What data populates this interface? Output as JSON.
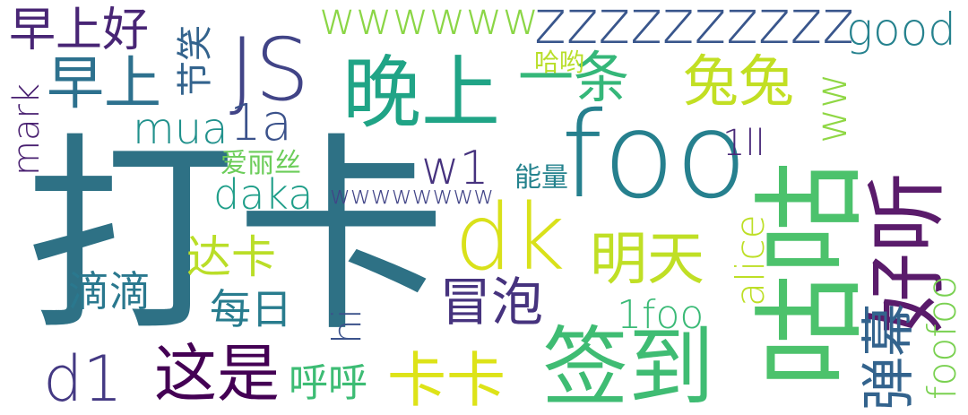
{
  "words": [
    {
      "text": "打卡",
      "color": "#2e7185"
    },
    {
      "text": "foo",
      "color": "#26808e"
    },
    {
      "text": "咕咕",
      "color": "#4cc26c"
    },
    {
      "text": "好听",
      "color": "#5a1b6b"
    },
    {
      "text": "签到",
      "color": "#3fbc73"
    },
    {
      "text": "dk",
      "color": "#d9e11a"
    },
    {
      "text": "JS",
      "color": "#414487"
    },
    {
      "text": "晚上",
      "color": "#20a486"
    },
    {
      "text": "zzzzzzzzzz",
      "color": "#39568c"
    },
    {
      "text": "这是",
      "color": "#440154"
    },
    {
      "text": "卡卡",
      "color": "#dde318"
    },
    {
      "text": "弹幕",
      "color": "#33638d"
    },
    {
      "text": "明天",
      "color": "#c0df25"
    },
    {
      "text": "兔兔",
      "color": "#c2df23"
    },
    {
      "text": "一条",
      "color": "#35b779"
    },
    {
      "text": "早上",
      "color": "#2d718e"
    },
    {
      "text": "早上好",
      "color": "#482575"
    },
    {
      "text": "d1",
      "color": "#443983"
    },
    {
      "text": "冒泡",
      "color": "#46337e"
    },
    {
      "text": "good",
      "color": "#26828e"
    },
    {
      "text": "wwwwww",
      "color": "#8bd646"
    },
    {
      "text": "1a",
      "color": "#3b528b"
    },
    {
      "text": "foofoo",
      "color": "#7ad151"
    },
    {
      "text": "alice",
      "color": "#bddf26"
    },
    {
      "text": "w1",
      "color": "#46327e"
    },
    {
      "text": "ww",
      "color": "#8fd744"
    },
    {
      "text": "mua",
      "color": "#21918c"
    },
    {
      "text": "每日",
      "color": "#287c8e"
    },
    {
      "text": "滴滴",
      "color": "#2a788e"
    },
    {
      "text": "达卡",
      "color": "#bade28"
    },
    {
      "text": "daka",
      "color": "#1f9e89"
    },
    {
      "text": "1foo",
      "color": "#3aba76"
    },
    {
      "text": "呼呼",
      "color": "#3dbc74"
    },
    {
      "text": "mark",
      "color": "#481f70"
    },
    {
      "text": "hi",
      "color": "#3b528b"
    },
    {
      "text": "1ll",
      "color": "#482878"
    },
    {
      "text": "wwwwwwww",
      "color": "#414487"
    },
    {
      "text": "能量",
      "color": "#25838e"
    },
    {
      "text": "爱丽丝",
      "color": "#6ccd5a"
    },
    {
      "text": "哈哟",
      "color": "#b8de29"
    },
    {
      "text": "节笑",
      "color": "#33638d"
    }
  ]
}
